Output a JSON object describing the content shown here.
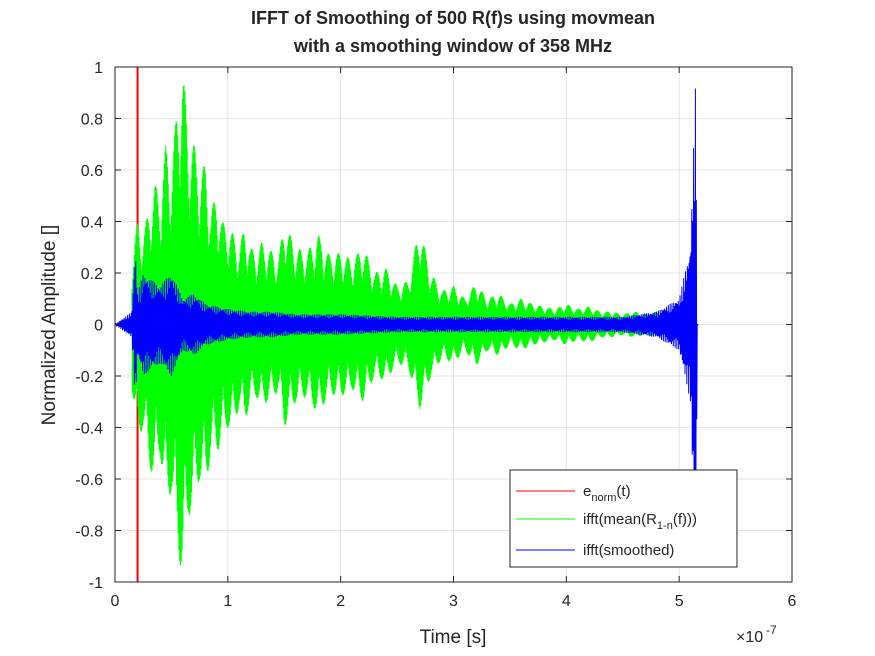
{
  "chart_data": {
    "type": "line",
    "title_lines": [
      "IFFT of Smoothing of 500 R(f)s using movmean",
      "with a smoothing window of 358 MHz"
    ],
    "xlabel": "Time [s]",
    "ylabel": "Normalized Amplitude []",
    "x_exponent_label": "×10",
    "x_exponent_power": "-7",
    "xlim": [
      0,
      6
    ],
    "ylim": [
      -1,
      1
    ],
    "x_ticks": [
      0,
      1,
      2,
      3,
      4,
      5,
      6
    ],
    "y_ticks": [
      -1,
      -0.8,
      -0.6,
      -0.4,
      -0.2,
      0,
      0.2,
      0.4,
      0.6,
      0.8,
      1
    ],
    "x_tick_labels": [
      "0",
      "1",
      "2",
      "3",
      "4",
      "5",
      "6"
    ],
    "y_tick_labels": [
      "-1",
      "-0.8",
      "-0.6",
      "-0.4",
      "-0.2",
      "0",
      "0.2",
      "0.4",
      "0.6",
      "0.8",
      "1"
    ],
    "grid": true,
    "legend_position": "bottom-right",
    "series": [
      {
        "id": "green",
        "legend_main": "ifft(mean(R",
        "legend_sub": "1-n",
        "legend_tail": "(f)))",
        "color": "#00ff00",
        "envelope": {
          "x": [
            0.15,
            0.2,
            0.25,
            0.3,
            0.35,
            0.4,
            0.45,
            0.5,
            0.55,
            0.6,
            0.65,
            0.7,
            0.75,
            0.8,
            0.85,
            0.9,
            0.95,
            1.0,
            1.05,
            1.1,
            1.15,
            1.2,
            1.25,
            1.3,
            1.35,
            1.4,
            1.45,
            1.5,
            1.6,
            1.7,
            1.8,
            1.9,
            2.0,
            2.1,
            2.2,
            2.3,
            2.4,
            2.5,
            2.6,
            2.7,
            2.8,
            2.9,
            3.0,
            3.1,
            3.2,
            3.3,
            3.4,
            3.5,
            3.6,
            3.7,
            3.8,
            3.9,
            4.0,
            4.1,
            4.2,
            4.3,
            4.4,
            4.5,
            4.6,
            4.7,
            4.8,
            4.9,
            5.0,
            5.1,
            5.15
          ],
          "upper": [
            0.25,
            0.4,
            0.35,
            0.45,
            0.55,
            0.5,
            0.7,
            0.6,
            0.85,
            1.0,
            0.75,
            0.7,
            0.6,
            0.62,
            0.45,
            0.5,
            0.4,
            0.38,
            0.35,
            0.3,
            0.38,
            0.3,
            0.28,
            0.32,
            0.3,
            0.28,
            0.26,
            0.4,
            0.3,
            0.28,
            0.35,
            0.27,
            0.28,
            0.25,
            0.3,
            0.2,
            0.22,
            0.15,
            0.17,
            0.38,
            0.2,
            0.13,
            0.15,
            0.1,
            0.16,
            0.1,
            0.12,
            0.08,
            0.1,
            0.08,
            0.07,
            0.06,
            0.08,
            0.06,
            0.07,
            0.05,
            0.05,
            0.04,
            0.05,
            0.04,
            0.05,
            0.04,
            0.05,
            0.04,
            0.02
          ],
          "lower": [
            -0.25,
            -0.45,
            -0.4,
            -0.55,
            -0.6,
            -0.5,
            -0.7,
            -0.65,
            -0.85,
            -1.0,
            -0.75,
            -0.7,
            -0.6,
            -0.65,
            -0.5,
            -0.5,
            -0.45,
            -0.4,
            -0.4,
            -0.32,
            -0.38,
            -0.3,
            -0.28,
            -0.32,
            -0.3,
            -0.28,
            -0.26,
            -0.4,
            -0.3,
            -0.28,
            -0.35,
            -0.27,
            -0.28,
            -0.25,
            -0.3,
            -0.2,
            -0.22,
            -0.15,
            -0.17,
            -0.33,
            -0.2,
            -0.13,
            -0.15,
            -0.1,
            -0.16,
            -0.1,
            -0.12,
            -0.08,
            -0.1,
            -0.08,
            -0.07,
            -0.06,
            -0.08,
            -0.06,
            -0.07,
            -0.05,
            -0.05,
            -0.04,
            -0.05,
            -0.04,
            -0.05,
            -0.04,
            -0.05,
            -0.04,
            -0.02
          ]
        }
      },
      {
        "id": "blue",
        "legend_main": "ifft(smoothed)",
        "legend_sub": "",
        "legend_tail": "",
        "color": "#0000ff",
        "envelope": {
          "x": [
            0.0,
            0.15,
            0.18,
            0.2,
            0.25,
            0.3,
            0.4,
            0.5,
            0.6,
            0.7,
            0.8,
            1.0,
            1.2,
            1.4,
            1.6,
            1.8,
            2.0,
            2.5,
            3.0,
            3.5,
            4.0,
            4.5,
            4.8,
            5.0,
            5.05,
            5.1,
            5.15,
            5.16,
            5.17
          ],
          "upper": [
            0.0,
            0.05,
            0.3,
            0.12,
            0.2,
            0.18,
            0.15,
            0.2,
            0.1,
            0.12,
            0.08,
            0.06,
            0.05,
            0.05,
            0.04,
            0.04,
            0.04,
            0.03,
            0.03,
            0.03,
            0.03,
            0.03,
            0.05,
            0.1,
            0.2,
            0.3,
            1.0,
            0.0,
            0.0
          ],
          "lower": [
            0.0,
            -0.05,
            -0.3,
            -0.12,
            -0.2,
            -0.18,
            -0.15,
            -0.2,
            -0.1,
            -0.12,
            -0.08,
            -0.06,
            -0.05,
            -0.05,
            -0.04,
            -0.04,
            -0.04,
            -0.03,
            -0.03,
            -0.03,
            -0.03,
            -0.03,
            -0.05,
            -0.1,
            -0.2,
            -0.3,
            -1.0,
            0.0,
            0.0
          ]
        }
      },
      {
        "id": "red",
        "legend_main": "e",
        "legend_sub": "norm",
        "legend_tail": "(t)",
        "color": "#ff0000",
        "spike_x": 0.2,
        "spike_range": [
          -1,
          1
        ]
      }
    ],
    "legend_order": [
      "red",
      "green",
      "blue"
    ]
  }
}
